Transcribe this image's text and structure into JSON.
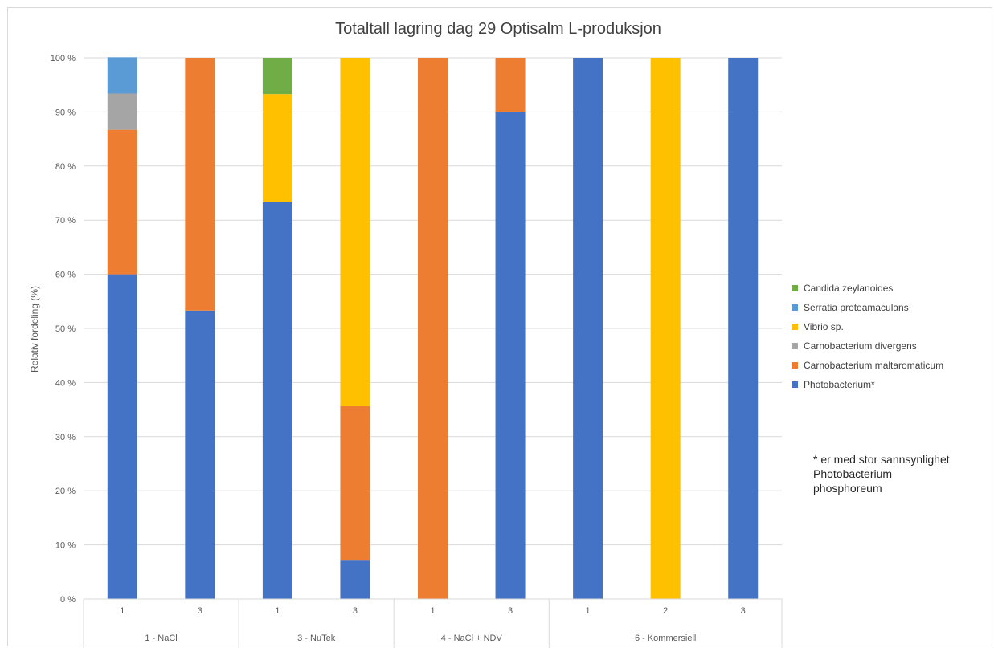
{
  "chart_data": {
    "type": "bar",
    "stacked": true,
    "percent_stacked": true,
    "title": "Totaltall lagring dag 29 Optisalm L-produksjon",
    "ylabel": "Relativ fordeling (%)",
    "xlabel": "",
    "ylim": [
      0,
      100
    ],
    "yticks": [
      "0 %",
      "10 %",
      "20 %",
      "30 %",
      "40 %",
      "50 %",
      "60 %",
      "70 %",
      "80 %",
      "90 %",
      "100 %"
    ],
    "grid": true,
    "legend_position": "right",
    "categories": [
      "1",
      "3",
      "1",
      "3",
      "1",
      "3",
      "1",
      "2",
      "3"
    ],
    "groups": [
      {
        "label": "1 - NaCl",
        "span": 2
      },
      {
        "label": "3 - NuTek",
        "span": 2
      },
      {
        "label": "4 - NaCl + NDV",
        "span": 2
      },
      {
        "label": "6 - Kommersiell",
        "span": 3
      }
    ],
    "series": [
      {
        "name": "Photobacterium*",
        "color": "#4472C4",
        "values": [
          60,
          53.3,
          73.3,
          7.1,
          0,
          90,
          100,
          0,
          100
        ]
      },
      {
        "name": "Carnobacterium maltaromaticum",
        "color": "#ED7D31",
        "values": [
          26.7,
          46.7,
          0,
          28.6,
          100,
          10,
          0,
          0,
          0
        ]
      },
      {
        "name": "Carnobacterium divergens",
        "color": "#A5A5A5",
        "values": [
          6.7,
          0,
          0,
          0,
          0,
          0,
          0,
          0,
          0
        ]
      },
      {
        "name": "Vibrio sp.",
        "color": "#FFC000",
        "values": [
          0,
          0,
          20,
          64.3,
          0,
          0,
          0,
          100,
          0
        ]
      },
      {
        "name": "Serratia proteamaculans",
        "color": "#5B9BD5",
        "values": [
          6.7,
          0,
          0,
          0,
          0,
          0,
          0,
          0,
          0
        ]
      },
      {
        "name": "Candida zeylanoides",
        "color": "#70AD47",
        "values": [
          0,
          0,
          6.7,
          0,
          0,
          0,
          0,
          0,
          0
        ]
      }
    ],
    "legend_order": [
      "Candida zeylanoides",
      "Serratia proteamaculans",
      "Vibrio sp.",
      "Carnobacterium divergens",
      "Carnobacterium maltaromaticum",
      "Photobacterium*"
    ]
  },
  "footnote": "* er med stor sannsynlighet\nPhotobacterium\nphosphoreum"
}
